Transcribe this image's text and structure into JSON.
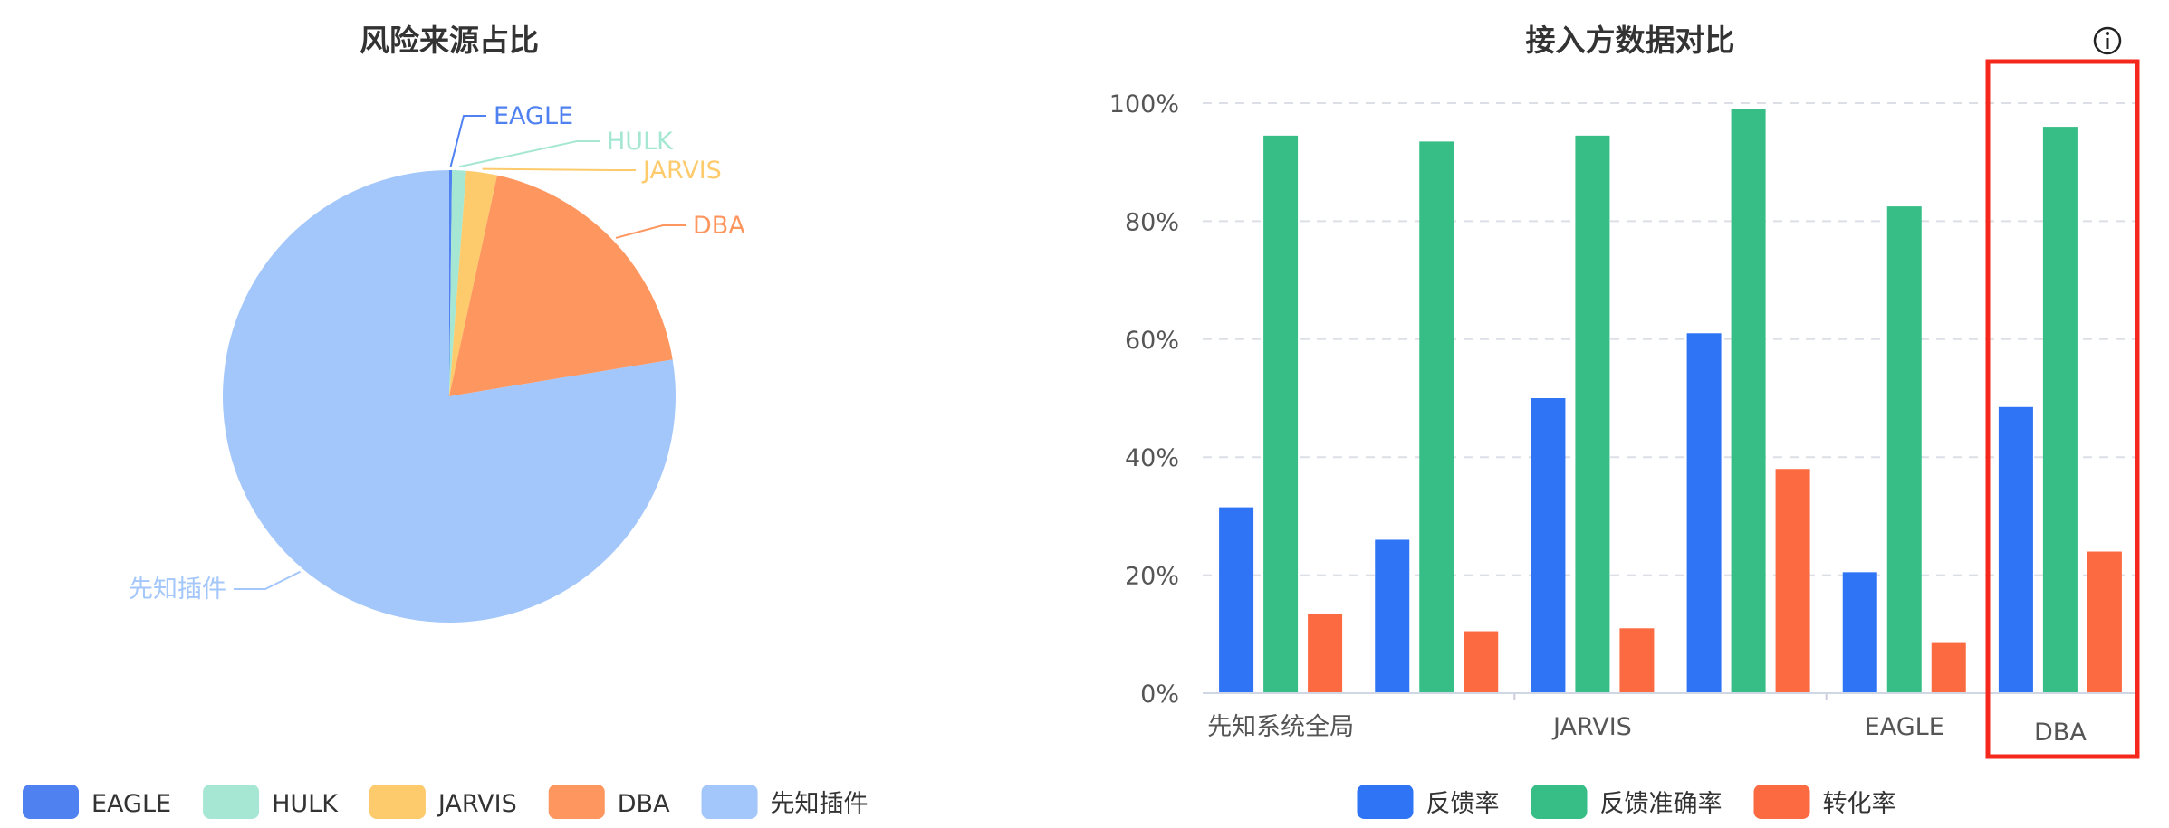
{
  "chart_data": [
    {
      "type": "pie",
      "title": "风险来源占比",
      "labels": [
        "EAGLE",
        "HULK",
        "JARVIS",
        "DBA",
        "先知插件"
      ],
      "values": [
        0.2,
        1.0,
        2.2,
        19.0,
        77.6
      ],
      "colors": [
        "#5081F0",
        "#A6E7D3",
        "#FDCB6B",
        "#FD965F",
        "#A3C7FA"
      ],
      "legend": {
        "position": "bottom",
        "entries": [
          "EAGLE",
          "HULK",
          "JARVIS",
          "DBA",
          "先知插件"
        ]
      }
    },
    {
      "type": "bar",
      "title": "接入方数据对比",
      "categories": [
        "先知系统全局",
        "",
        "JARVIS",
        "",
        "EAGLE",
        "DBA"
      ],
      "series": [
        {
          "name": "反馈率",
          "color": "#2E74F5",
          "values": [
            31.5,
            26,
            50,
            61,
            20.5,
            48.5
          ]
        },
        {
          "name": "反馈准确率",
          "color": "#37BE87",
          "values": [
            94.5,
            93.5,
            94.5,
            99,
            82.5,
            96
          ]
        },
        {
          "name": "转化率",
          "color": "#FC6A42",
          "values": [
            13.5,
            10.5,
            11,
            38,
            8.5,
            24
          ]
        }
      ],
      "yticks": [
        "0%",
        "20%",
        "40%",
        "60%",
        "80%",
        "100%"
      ],
      "ylim": [
        0,
        100
      ],
      "grid": true,
      "legend": {
        "position": "bottom"
      },
      "highlight": {
        "category": "DBA",
        "color": "#F5281E"
      },
      "info_icon": "info-circle-icon"
    }
  ]
}
